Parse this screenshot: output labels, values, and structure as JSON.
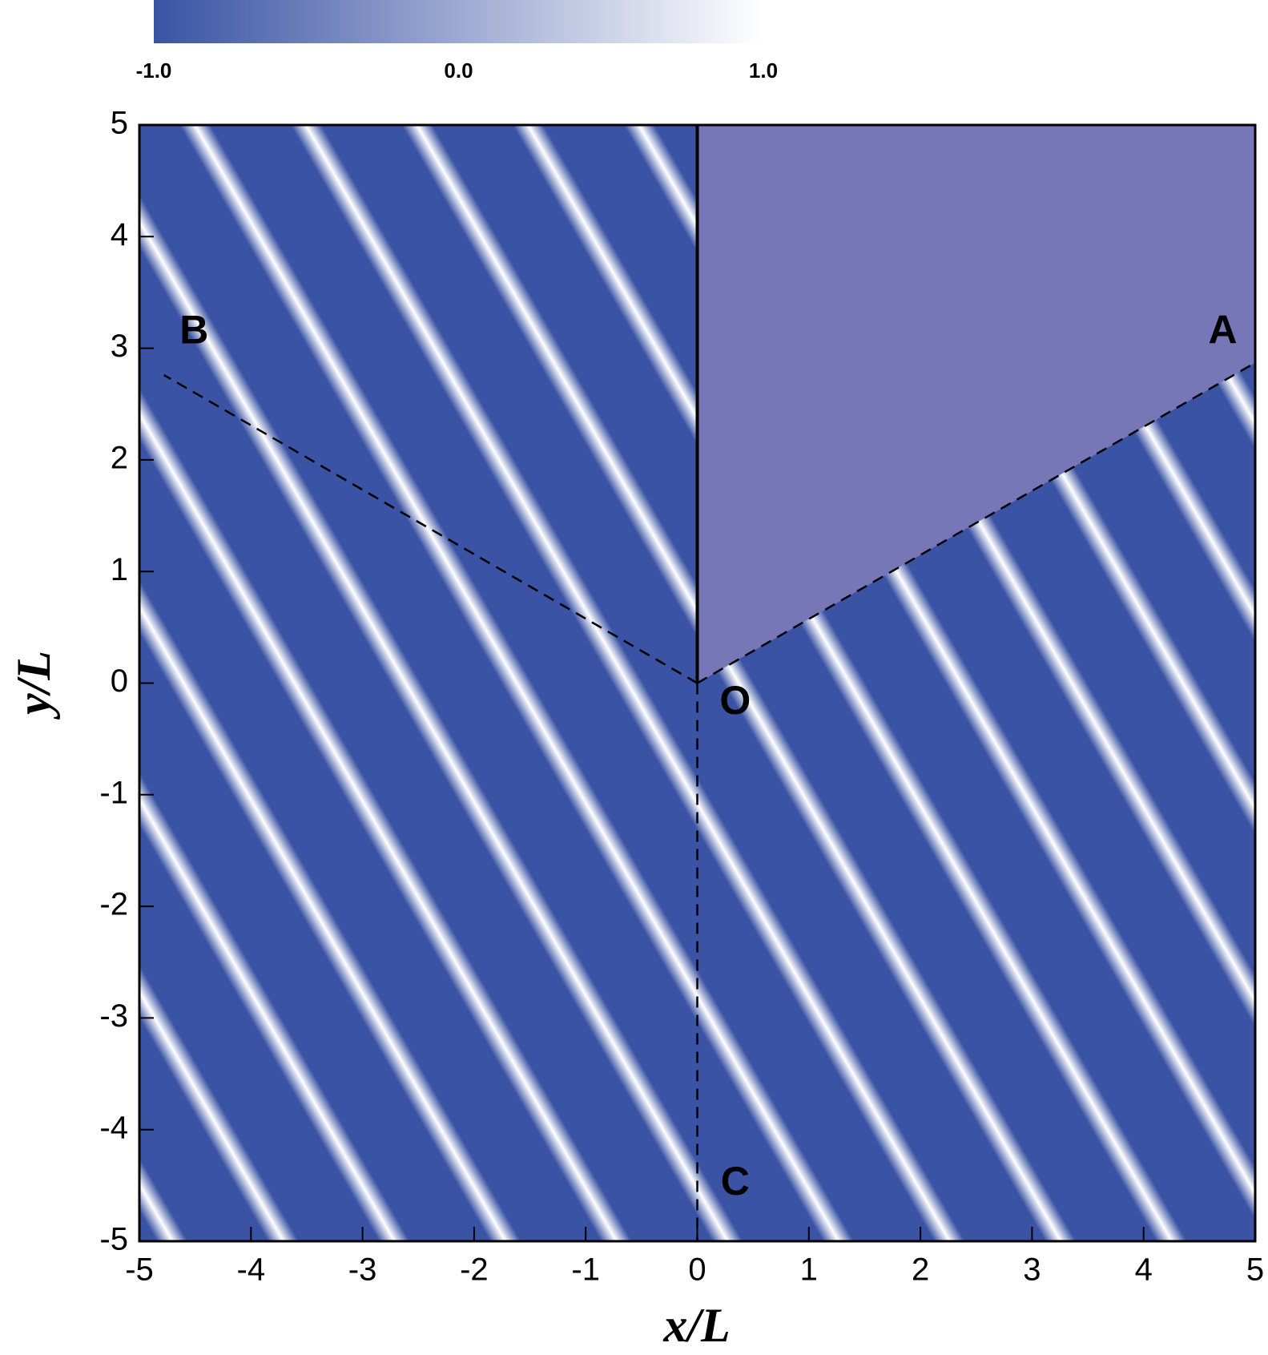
{
  "chart_data": {
    "type": "contour",
    "x_label": "x/L",
    "y_label": "y/L",
    "xlim": [
      -5,
      5
    ],
    "ylim": [
      -5,
      5
    ],
    "xticks": [
      -5,
      -4,
      -3,
      -2,
      -1,
      0,
      1,
      2,
      3,
      4,
      5
    ],
    "yticks": [
      -5,
      -4,
      -3,
      -2,
      -1,
      0,
      1,
      2,
      3,
      4,
      5
    ],
    "colorbar": {
      "clim": [
        -1,
        1
      ],
      "colors": [
        "#3a53a4",
        "#ffffff"
      ],
      "ticks": [
        {
          "value": -1,
          "label": "-1.0"
        },
        {
          "value": 0,
          "label": "0.0"
        },
        {
          "value": 1,
          "label": "1.0"
        }
      ]
    },
    "shadow_color": "#7777b8",
    "lines": [
      {
        "x": [
          0,
          5
        ],
        "y": [
          0,
          2.87
        ],
        "style": "dashed"
      },
      {
        "x": [
          0,
          -4.78
        ],
        "y": [
          0,
          2.76
        ],
        "style": "dashed"
      },
      {
        "x": [
          0,
          0
        ],
        "y": [
          0,
          -5
        ],
        "style": "dashed"
      },
      {
        "x": [
          0,
          0
        ],
        "y": [
          0,
          5
        ],
        "style": "solid"
      }
    ],
    "annotations": [
      {
        "text": "A",
        "x": 4.71,
        "y": 3.14
      },
      {
        "text": "B",
        "x": -4.51,
        "y": 3.14
      },
      {
        "text": "O",
        "x": 0.34,
        "y": -0.18
      },
      {
        "text": "C",
        "x": 0.34,
        "y": -4.49
      }
    ]
  }
}
